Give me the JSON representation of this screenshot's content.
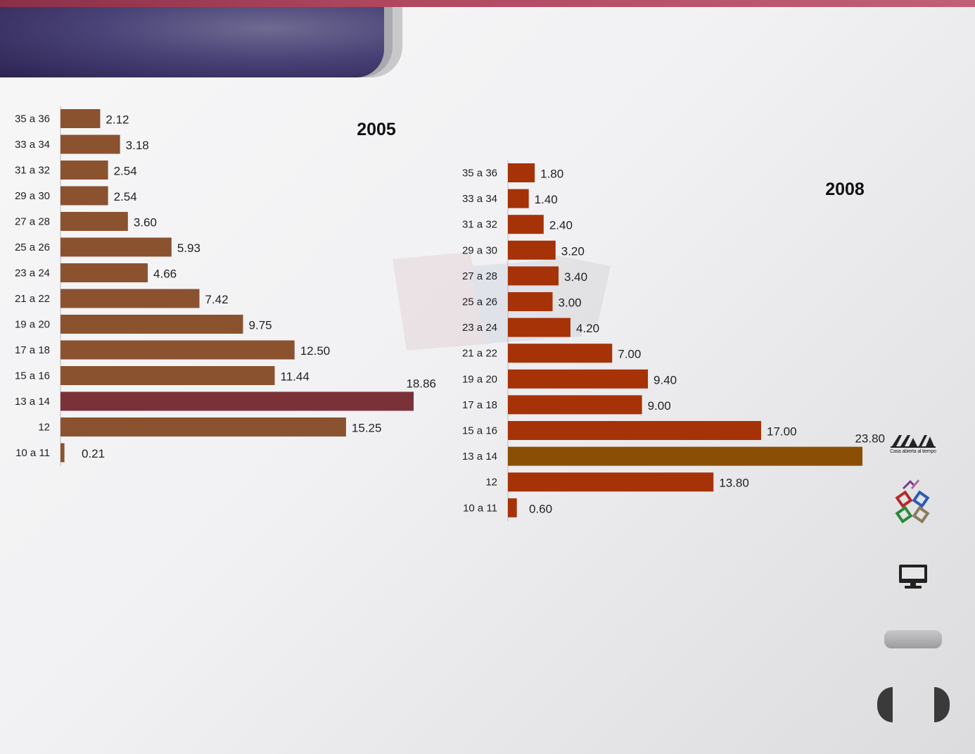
{
  "slide": {
    "logo_tagline": "Casa abierta al tiempo"
  },
  "chart_data": [
    {
      "type": "bar",
      "orientation": "horizontal",
      "title": "2005",
      "categories": [
        "35 a 36",
        "33 a 34",
        "31 a 32",
        "29 a 30",
        "27 a 28",
        "25 a 26",
        "23 a 24",
        "21 a 22",
        "19 a 20",
        "17 a 18",
        "15 a 16",
        "13 a 14",
        "12",
        "10 a 11"
      ],
      "values": [
        2.12,
        3.18,
        2.54,
        2.54,
        3.6,
        5.93,
        4.66,
        7.42,
        9.75,
        12.5,
        11.44,
        18.86,
        15.25,
        0.21
      ],
      "value_labels": [
        "2.12",
        "3.18",
        "2.54",
        "2.54",
        "3.60",
        "5.93",
        "4.66",
        "7.42",
        "9.75",
        "12.50",
        "11.44",
        "18.86",
        "15.25",
        "0.21"
      ],
      "bar_color": "#8b5230",
      "highlight_index": 11,
      "highlight_color": "#7a3238",
      "xlim": [
        0,
        18.86
      ],
      "grid": false
    },
    {
      "type": "bar",
      "orientation": "horizontal",
      "title": "2008",
      "categories": [
        "35 a 36",
        "33 a 34",
        "31 a 32",
        "29 a 30",
        "27 a 28",
        "25 a 26",
        "23 a 24",
        "21 a 22",
        "19 a 20",
        "17 a 18",
        "15 a 16",
        "13 a 14",
        "12",
        "10 a 11"
      ],
      "values": [
        1.8,
        1.4,
        2.4,
        3.2,
        3.4,
        3.0,
        4.2,
        7.0,
        9.4,
        9.0,
        17.0,
        23.8,
        13.8,
        0.6
      ],
      "value_labels": [
        "1.80",
        "1.40",
        "2.40",
        "3.20",
        "3.40",
        "3.00",
        "4.20",
        "7.00",
        "9.40",
        "9.00",
        "17.00",
        "23.80",
        "13.80",
        "0.60"
      ],
      "bar_color": "#a63208",
      "highlight_index": 11,
      "highlight_color": "#8b4e05",
      "xlim": [
        0,
        23.8
      ],
      "grid": false
    }
  ]
}
